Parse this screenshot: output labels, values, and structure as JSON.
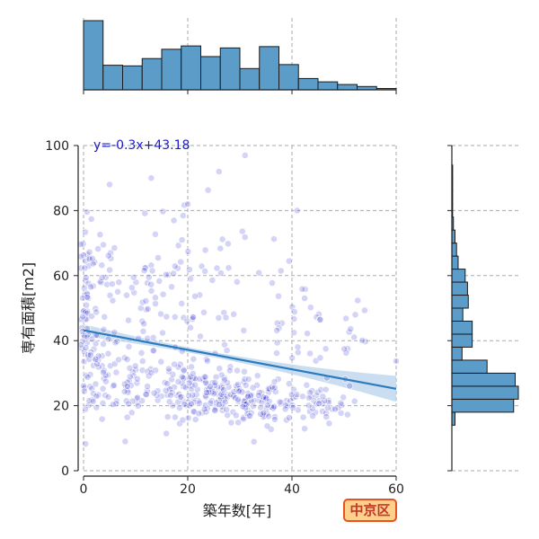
{
  "chart_data": {
    "type": "scatter",
    "xlabel": "築年数[年]",
    "ylabel": "専有面積[m2]",
    "xlim": [
      0,
      60
    ],
    "ylim": [
      0,
      100
    ],
    "xticks": [
      "0",
      "20",
      "40",
      "60"
    ],
    "yticks": [
      "0",
      "20",
      "40",
      "60",
      "80",
      "100"
    ],
    "grid": "dashed",
    "regression": {
      "label": "y=-0.3x+43.18",
      "slope": -0.3,
      "intercept": 43.18,
      "x_range": [
        0,
        60
      ]
    },
    "point_clusters": [
      {
        "cx": 0.5,
        "cy": 45,
        "sx": 0.4,
        "sy": 14,
        "n": 45
      },
      {
        "cx": 2.5,
        "cy": 30,
        "sx": 1.5,
        "sy": 7,
        "n": 45
      },
      {
        "cx": 3,
        "cy": 60,
        "sx": 2,
        "sy": 9,
        "n": 35
      },
      {
        "cx": 9,
        "cy": 28,
        "sx": 3,
        "sy": 6,
        "n": 45
      },
      {
        "cx": 12,
        "cy": 52,
        "sx": 4,
        "sy": 12,
        "n": 55
      },
      {
        "cx": 20,
        "cy": 25,
        "sx": 4,
        "sy": 4,
        "n": 85
      },
      {
        "cx": 27,
        "cy": 23,
        "sx": 4,
        "sy": 4,
        "n": 85
      },
      {
        "cx": 22,
        "cy": 52,
        "sx": 6,
        "sy": 14,
        "n": 50
      },
      {
        "cx": 35,
        "cy": 21,
        "sx": 4,
        "sy": 3,
        "n": 80
      },
      {
        "cx": 40,
        "cy": 42,
        "sx": 4,
        "sy": 13,
        "n": 40
      },
      {
        "cx": 45,
        "cy": 20,
        "sx": 3,
        "sy": 3,
        "n": 40
      },
      {
        "cx": 52,
        "cy": 38,
        "sx": 6,
        "sy": 10,
        "n": 15
      }
    ],
    "outlier_points": [
      [
        5,
        88
      ],
      [
        13,
        90
      ],
      [
        31,
        97
      ],
      [
        20,
        82
      ],
      [
        41,
        80
      ],
      [
        26,
        92
      ],
      [
        8,
        9
      ]
    ],
    "x_histogram": {
      "bin_width": 3.75,
      "counts": [
        104,
        37,
        36,
        47,
        61,
        66,
        50,
        63,
        32,
        65,
        38,
        17,
        12,
        8,
        5,
        2
      ]
    },
    "y_histogram": {
      "bins": [
        [
          14,
          18,
          4
        ],
        [
          18,
          22,
          79
        ],
        [
          22,
          26,
          85
        ],
        [
          26,
          30,
          81
        ],
        [
          30,
          34,
          45
        ],
        [
          34,
          38,
          13
        ],
        [
          38,
          42,
          26
        ],
        [
          42,
          46,
          26
        ],
        [
          46,
          50,
          14
        ],
        [
          50,
          54,
          21
        ],
        [
          54,
          58,
          20
        ],
        [
          58,
          62,
          17
        ],
        [
          62,
          66,
          8
        ],
        [
          66,
          70,
          6
        ],
        [
          70,
          74,
          4
        ],
        [
          74,
          78,
          2
        ],
        [
          78,
          82,
          1
        ],
        [
          82,
          86,
          1
        ],
        [
          86,
          90,
          1
        ],
        [
          90,
          94,
          1
        ]
      ]
    }
  },
  "badge": {
    "text": "中京区",
    "bg": "#ffcf8c",
    "border": "#e8531d",
    "color": "#c0392b"
  },
  "colors": {
    "point_fill": "#3a3ad8",
    "point_edge": "#ffffff",
    "regression": "#2b7bbf",
    "ci": "#b9d3ec",
    "hist": "#5b9cc9",
    "eq_text": "#1c1cc8"
  }
}
